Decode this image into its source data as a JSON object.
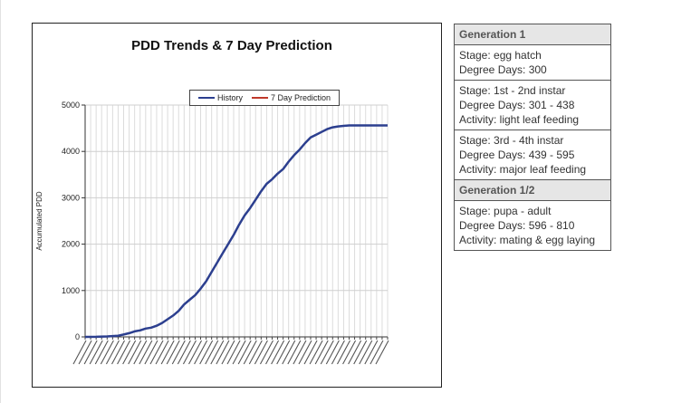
{
  "chart_data": {
    "type": "line",
    "title": "PDD Trends & 7 Day Prediction",
    "ylabel": "Accumulated PDD",
    "xlabel": "",
    "ylim": [
      0,
      5000
    ],
    "yticks": [
      "0",
      "1000",
      "2000",
      "3000",
      "4000",
      "5000"
    ],
    "grid": true,
    "legend_position": "top",
    "series": [
      {
        "name": "History",
        "color": "#2c3f8f",
        "x_index": [
          0,
          4,
          8,
          12,
          14,
          16,
          18,
          20,
          22,
          24,
          26,
          28,
          30,
          32,
          34,
          36,
          38,
          40,
          42,
          44,
          46,
          48,
          50,
          52,
          54,
          56,
          58,
          60,
          62,
          64,
          66,
          68,
          70,
          72,
          74,
          76,
          78,
          80,
          82,
          84,
          86,
          88,
          90,
          92,
          94,
          96,
          98,
          100,
          102,
          104,
          106,
          108,
          110
        ],
        "values": [
          0,
          2,
          10,
          25,
          50,
          80,
          120,
          140,
          180,
          200,
          240,
          300,
          380,
          460,
          560,
          700,
          800,
          900,
          1040,
          1200,
          1400,
          1600,
          1800,
          2000,
          2200,
          2420,
          2620,
          2780,
          2960,
          3140,
          3300,
          3400,
          3520,
          3620,
          3780,
          3920,
          4040,
          4180,
          4300,
          4360,
          4420,
          4480,
          4520,
          4540,
          4550,
          4560,
          4560,
          4560,
          4560,
          4560,
          4560,
          4560,
          4560
        ]
      },
      {
        "name": "7 Day Prediction",
        "color": "#c0392b",
        "x_index": [],
        "values": []
      }
    ],
    "x_categories_count": 111
  },
  "stages": [
    {
      "type": "header",
      "text": "Generation 1"
    },
    {
      "type": "stage",
      "lines": [
        "Stage: egg hatch",
        "Degree Days: 300"
      ]
    },
    {
      "type": "stage",
      "lines": [
        "Stage: 1st - 2nd instar",
        "Degree Days: 301 - 438",
        "Activity: light leaf feeding"
      ]
    },
    {
      "type": "stage",
      "lines": [
        "Stage: 3rd - 4th instar",
        "Degree Days: 439 - 595",
        "Activity: major leaf feeding"
      ]
    },
    {
      "type": "header",
      "text": "Generation 1/2"
    },
    {
      "type": "stage",
      "lines": [
        "Stage: pupa - adult",
        "Degree Days: 596 - 810",
        "Activity: mating & egg laying"
      ]
    }
  ]
}
